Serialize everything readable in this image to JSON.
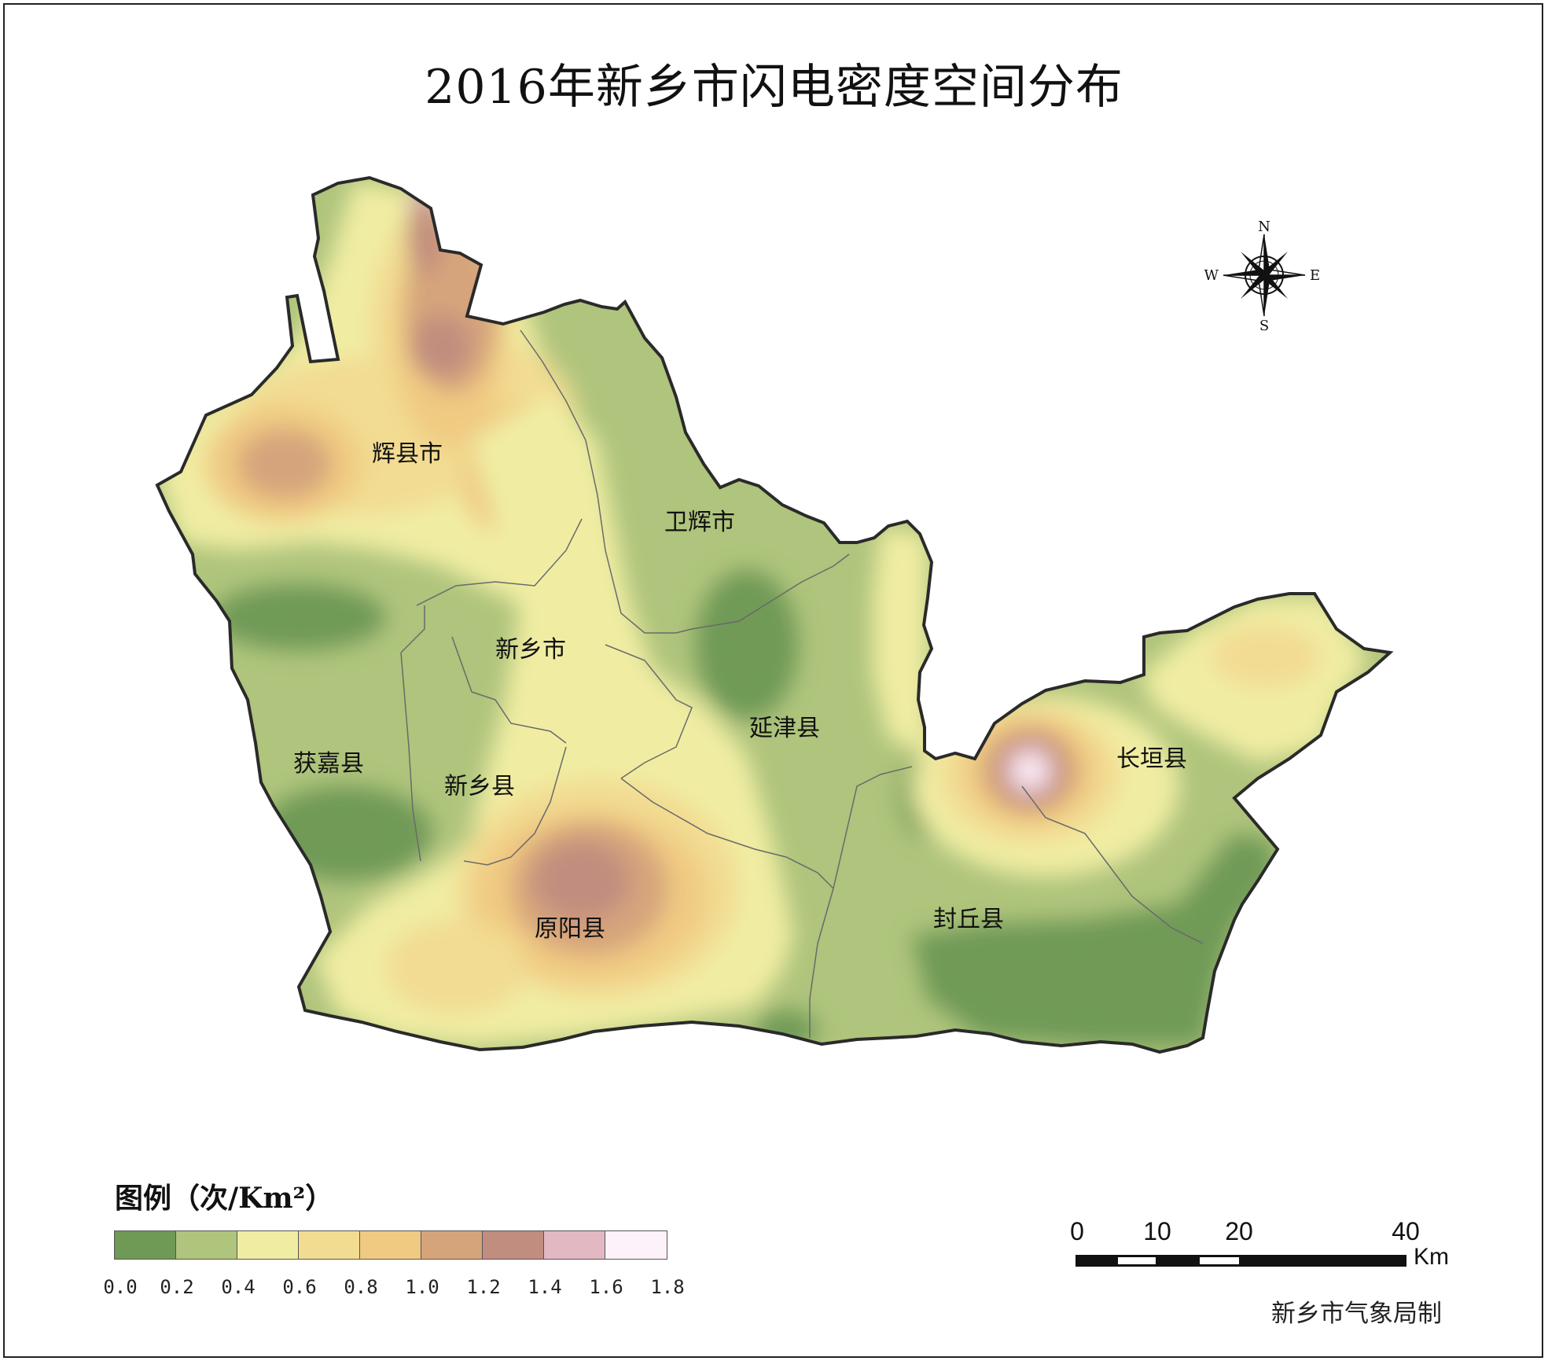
{
  "title": "2016年新乡市闪电密度空间分布",
  "county_labels": [
    {
      "id": "huixian",
      "text": "辉县市"
    },
    {
      "id": "weihui",
      "text": "卫辉市"
    },
    {
      "id": "xinxiangshi",
      "text": "新乡市"
    },
    {
      "id": "yanjin",
      "text": "延津县"
    },
    {
      "id": "huojia",
      "text": "获嘉县"
    },
    {
      "id": "xinxiangxian",
      "text": "新乡县"
    },
    {
      "id": "changyuan",
      "text": "长垣县"
    },
    {
      "id": "yuanyang",
      "text": "原阳县"
    },
    {
      "id": "fengqiu",
      "text": "封丘县"
    }
  ],
  "compass": {
    "n": "N",
    "s": "S",
    "e": "E",
    "w": "W"
  },
  "legend": {
    "title": "图例（次/Km²）",
    "colors": [
      "#6f9a56",
      "#afc47c",
      "#f0eda3",
      "#f2dc92",
      "#f0ca82",
      "#d6a47b",
      "#c18d7e",
      "#e2b9c3",
      "#fdf1fa"
    ],
    "ticks": [
      "0.0",
      "0.2",
      "0.4",
      "0.6",
      "0.8",
      "1.0",
      "1.2",
      "1.4",
      "1.6",
      "1.8"
    ]
  },
  "scale_bar": {
    "labels": [
      "0",
      "10",
      "20",
      "40"
    ],
    "unit": "Km"
  },
  "credit": "新乡市气象局制"
}
